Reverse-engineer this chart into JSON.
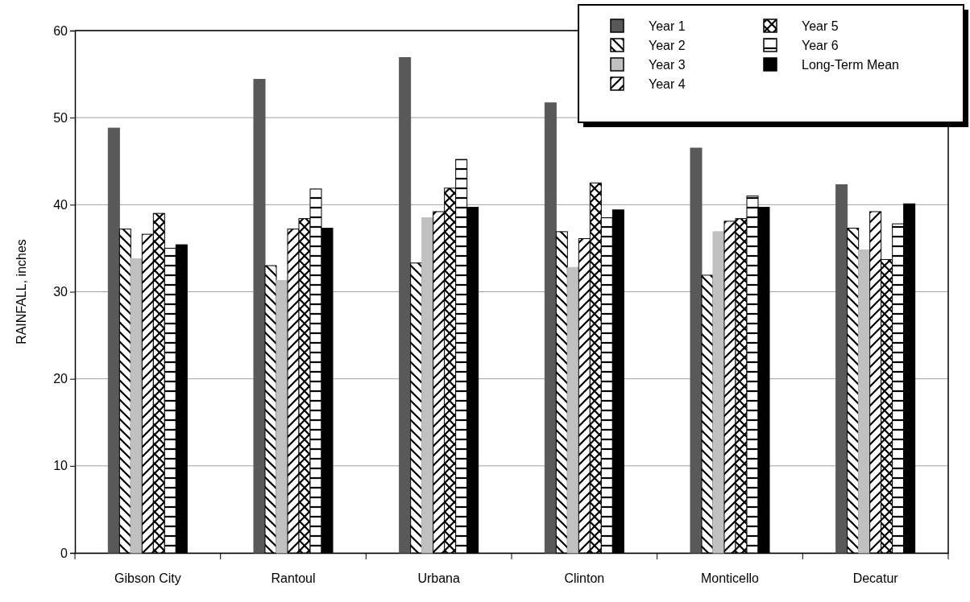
{
  "chart_data": {
    "type": "bar",
    "ylabel": "RAINFALL, inches",
    "categories": [
      "Gibson City",
      "Rantoul",
      "Urbana",
      "Clinton",
      "Monticello",
      "Decatur"
    ],
    "series": [
      {
        "name": "Year 1",
        "color": "#595959",
        "values": [
          48.8,
          54.4,
          56.9,
          51.7,
          46.5,
          42.3
        ]
      },
      {
        "name": "Year 2",
        "color": "#000000",
        "values": [
          37.2,
          33.0,
          33.3,
          36.9,
          31.9,
          37.3
        ]
      },
      {
        "name": "Year 3",
        "color": "#c0c0c0",
        "values": [
          33.8,
          31.3,
          38.5,
          32.8,
          36.9,
          34.8
        ]
      },
      {
        "name": "Year 4",
        "color": "#000000",
        "values": [
          36.6,
          37.2,
          39.2,
          36.1,
          38.1,
          39.2
        ]
      },
      {
        "name": "Year 5",
        "color": "#000000",
        "values": [
          39.0,
          38.4,
          41.9,
          42.5,
          38.4,
          33.7
        ]
      },
      {
        "name": "Year 6",
        "color": "#000000",
        "values": [
          35.0,
          41.8,
          45.2,
          38.5,
          41.0,
          37.8
        ]
      },
      {
        "name": "Long-Term Mean",
        "color": "#000000",
        "values": [
          35.4,
          37.3,
          39.7,
          39.4,
          39.7,
          40.1
        ]
      }
    ],
    "ylim": [
      0,
      60
    ],
    "yticks": [
      0,
      10,
      20,
      30,
      40,
      50,
      60
    ],
    "grid": "y",
    "legend": "top right"
  }
}
